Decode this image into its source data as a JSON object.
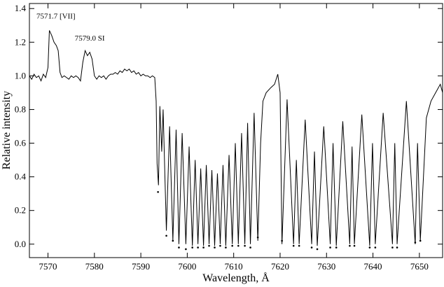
{
  "chart_data": {
    "type": "line",
    "xlabel": "Wavelength, Å",
    "ylabel": "Relative intensity",
    "xlim": [
      7566,
      7655
    ],
    "ylim": [
      -0.08,
      1.43
    ],
    "xticks": [
      7570,
      7580,
      7590,
      7600,
      7610,
      7620,
      7630,
      7640,
      7650
    ],
    "yticks": [
      {
        "value": 0,
        "label": "0.0"
      },
      {
        "value": 0.2,
        "label": "0.2"
      },
      {
        "value": 0.4,
        "label": "0.4"
      },
      {
        "value": 0.6,
        "label": "0.6"
      },
      {
        "value": 0.8,
        "label": "0.8"
      },
      {
        "value": 1.0,
        "label": "1.0"
      },
      {
        "value": 1.2,
        "label": "1.2"
      },
      {
        "value": 1.4,
        "label": "1.4"
      }
    ],
    "annotations": [
      {
        "text": "7571.7 [VII]",
        "x": 7571.7,
        "y": 1.34
      },
      {
        "text": "7579.0 SI",
        "x": 7579.0,
        "y": 1.21
      }
    ],
    "series": [
      {
        "style": "line",
        "color": "#000000",
        "x": [
          7566,
          7566.5,
          7567,
          7567.5,
          7568,
          7568.5,
          7569,
          7569.5,
          7570,
          7570.3,
          7570.8,
          7571.3,
          7571.8,
          7572.2,
          7572.6,
          7573,
          7573.5,
          7574,
          7574.5,
          7575,
          7575.5,
          7576,
          7576.5,
          7577,
          7577.5,
          7578,
          7578.5,
          7579,
          7579.5,
          7580,
          7580.5,
          7581,
          7581.5,
          7582,
          7582.5,
          7583,
          7583.5,
          7584,
          7584.5,
          7585,
          7585.5,
          7586,
          7586.5,
          7587,
          7587.5,
          7588,
          7588.5,
          7589,
          7589.5,
          7590,
          7590.5,
          7591,
          7591.5,
          7592,
          7592.5,
          7593,
          7593.3,
          7593.5,
          7593.8,
          7594.1,
          7594.5,
          7594.8,
          7595.5,
          7596.2,
          7596.9,
          7597.6,
          7598.2,
          7598.9,
          7599.7,
          7600.4,
          7601.1,
          7601.7,
          7602.3,
          7602.9,
          7603.5,
          7604.1,
          7604.7,
          7605.3,
          7605.9,
          7606.5,
          7607.1,
          7607.7,
          7608.3,
          7609.0,
          7609.7,
          7610.35,
          7611.0,
          7611.7,
          7612.4,
          7613.0,
          7613.6,
          7614.4,
          7615.2,
          7615.8,
          7616.3,
          7617,
          7618,
          7618.8,
          7619.5,
          7620,
          7620.4,
          7621.5,
          7622.9,
          7623.5,
          7624.1,
          7625.4,
          7626.8,
          7627.4,
          7628.0,
          7629.4,
          7630.8,
          7631.4,
          7632.1,
          7633.5,
          7635.0,
          7635.5,
          7636.0,
          7637.6,
          7639.3,
          7639.9,
          7640.5,
          7642.2,
          7644.2,
          7644.7,
          7645.2,
          7647.2,
          7649.1,
          7649.6,
          7650.2,
          7651.5,
          7652.5,
          7653.5,
          7654.5,
          7655
        ],
        "values": [
          1.0,
          0.98,
          1.01,
          0.99,
          1.0,
          0.97,
          1.01,
          0.99,
          1.05,
          1.27,
          1.24,
          1.2,
          1.18,
          1.15,
          1.02,
          0.99,
          1.0,
          0.99,
          0.98,
          1.0,
          0.99,
          1.0,
          0.99,
          0.97,
          1.08,
          1.15,
          1.12,
          1.14,
          1.1,
          1.0,
          0.98,
          1.0,
          0.99,
          1.0,
          0.98,
          1.0,
          1.01,
          1.01,
          1.02,
          1.01,
          1.03,
          1.02,
          1.04,
          1.03,
          1.04,
          1.02,
          1.03,
          1.01,
          1.02,
          1.0,
          1.01,
          1.0,
          1.0,
          0.99,
          1.0,
          0.99,
          0.85,
          0.48,
          0.35,
          0.82,
          0.55,
          0.8,
          0.08,
          0.7,
          0.02,
          0.68,
          0.0,
          0.66,
          0.0,
          0.58,
          -0.01,
          0.5,
          0.0,
          0.45,
          -0.01,
          0.47,
          0.0,
          0.44,
          -0.01,
          0.42,
          0.0,
          0.47,
          -0.01,
          0.53,
          0.0,
          0.6,
          0.0,
          0.66,
          0.0,
          0.72,
          0.0,
          0.78,
          0.02,
          0.6,
          0.85,
          0.9,
          0.93,
          0.95,
          1.01,
          0.9,
          0.0,
          0.86,
          0.0,
          0.5,
          0.0,
          0.74,
          0.0,
          0.55,
          -0.01,
          0.7,
          0.0,
          0.6,
          -0.01,
          0.73,
          0.0,
          0.58,
          0.0,
          0.77,
          -0.01,
          0.6,
          0.0,
          0.78,
          0.0,
          0.6,
          0.0,
          0.85,
          0.0,
          0.6,
          0.02,
          0.75,
          0.85,
          0.9,
          0.95,
          0.9
        ]
      },
      {
        "style": "points",
        "color": "#000000",
        "x": [
          7593.7,
          7595.5,
          7596.9,
          7598.2,
          7599.7,
          7601.1,
          7602.3,
          7603.5,
          7604.7,
          7605.9,
          7607.1,
          7608.3,
          7609.7,
          7611.0,
          7612.4,
          7613.6,
          7615.2,
          7620.4,
          7622.9,
          7624.1,
          7626.8,
          7628.0,
          7630.8,
          7632.1,
          7635.0,
          7636.0,
          7639.3,
          7640.5,
          7644.2,
          7645.2,
          7649.1,
          7650.2
        ],
        "values": [
          0.31,
          0.05,
          0.02,
          -0.02,
          -0.03,
          -0.02,
          -0.02,
          -0.02,
          -0.01,
          -0.02,
          -0.01,
          -0.02,
          -0.01,
          -0.01,
          -0.01,
          -0.02,
          0.04,
          0.02,
          -0.01,
          -0.01,
          -0.02,
          -0.03,
          -0.02,
          -0.02,
          -0.01,
          -0.01,
          -0.02,
          -0.02,
          -0.02,
          -0.02,
          0.01,
          0.02
        ]
      }
    ]
  }
}
